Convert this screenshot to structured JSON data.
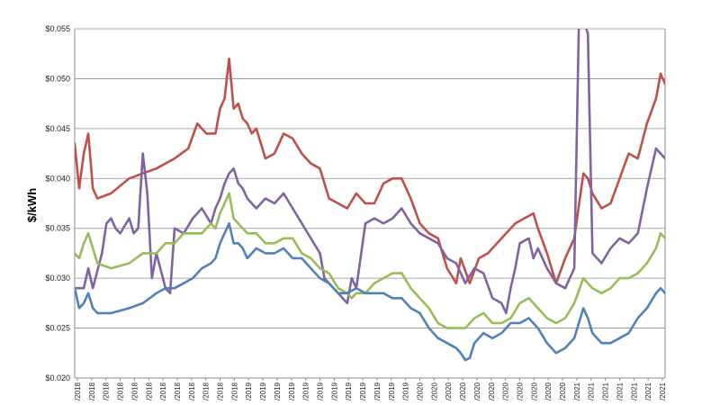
{
  "chart_data": {
    "type": "line",
    "title": "",
    "ylabel": "$/kWh",
    "xlabel": "",
    "ylim": [
      0.02,
      0.055
    ],
    "ytick_values": [
      0.02,
      0.025,
      0.03,
      0.035,
      0.04,
      0.045,
      0.05,
      0.055
    ],
    "ytick_labels": [
      "$0.020",
      "$0.025",
      "$0.030",
      "$0.035",
      "$0.040",
      "$0.045",
      "$0.050",
      "$0.055"
    ],
    "x_count": 100,
    "xtick_labels": [
      "/2018",
      "/2018",
      "/2018",
      "/2018",
      "/2018",
      "/2018",
      "/2018",
      "/2018",
      "/2018",
      "/2018",
      "/2018",
      "/2018",
      "/2019",
      "/2019",
      "/2019",
      "/2019",
      "/2019",
      "/2019",
      "/2019",
      "/2019",
      "/2019",
      "/2019",
      "/2019",
      "/2019",
      "/2020",
      "/2020",
      "/2020",
      "/2020",
      "/2020",
      "/2020",
      "/2020",
      "/2020",
      "/2020",
      "/2020",
      "/2020",
      "/2021",
      "/2021",
      "/2021",
      "/2021",
      "/2021",
      "/2021",
      "/2021"
    ],
    "grid": true,
    "series": [
      {
        "color": "#c0504d",
        "keyframes": [
          [
            0,
            0.0435
          ],
          [
            1,
            0.039
          ],
          [
            2,
            0.0425
          ],
          [
            3,
            0.0445
          ],
          [
            4,
            0.039
          ],
          [
            5,
            0.038
          ],
          [
            8,
            0.0385
          ],
          [
            12,
            0.04
          ],
          [
            15,
            0.0405
          ],
          [
            18,
            0.041
          ],
          [
            22,
            0.042
          ],
          [
            25,
            0.043
          ],
          [
            27,
            0.0455
          ],
          [
            29,
            0.0445
          ],
          [
            31,
            0.0445
          ],
          [
            32,
            0.047
          ],
          [
            33,
            0.048
          ],
          [
            34,
            0.052
          ],
          [
            35,
            0.047
          ],
          [
            36,
            0.0475
          ],
          [
            37,
            0.046
          ],
          [
            38,
            0.0455
          ],
          [
            39,
            0.0445
          ],
          [
            40,
            0.045
          ],
          [
            41,
            0.0435
          ],
          [
            42,
            0.042
          ],
          [
            44,
            0.0425
          ],
          [
            46,
            0.0445
          ],
          [
            48,
            0.044
          ],
          [
            50,
            0.0425
          ],
          [
            52,
            0.0415
          ],
          [
            54,
            0.041
          ],
          [
            56,
            0.038
          ],
          [
            58,
            0.0375
          ],
          [
            60,
            0.037
          ],
          [
            62,
            0.0385
          ],
          [
            64,
            0.0375
          ],
          [
            66,
            0.0375
          ],
          [
            68,
            0.0395
          ],
          [
            70,
            0.04
          ],
          [
            72,
            0.04
          ],
          [
            74,
            0.038
          ],
          [
            76,
            0.0355
          ],
          [
            78,
            0.0345
          ],
          [
            80,
            0.034
          ],
          [
            82,
            0.031
          ],
          [
            84,
            0.0295
          ],
          [
            85,
            0.032
          ],
          [
            87,
            0.0295
          ],
          [
            89,
            0.032
          ],
          [
            91,
            0.0325
          ],
          [
            93,
            0.0335
          ],
          [
            95,
            0.0345
          ],
          [
            97,
            0.0355
          ],
          [
            99,
            0.036
          ],
          [
            101,
            0.0365
          ],
          [
            102,
            0.035
          ],
          [
            104,
            0.0325
          ],
          [
            106,
            0.0295
          ],
          [
            108,
            0.032
          ],
          [
            110,
            0.034
          ],
          [
            112,
            0.0405
          ],
          [
            113,
            0.04
          ],
          [
            114,
            0.0385
          ],
          [
            116,
            0.037
          ],
          [
            118,
            0.0375
          ],
          [
            120,
            0.04
          ],
          [
            122,
            0.0425
          ],
          [
            124,
            0.042
          ],
          [
            126,
            0.0455
          ],
          [
            128,
            0.048
          ],
          [
            129,
            0.0505
          ],
          [
            130,
            0.0495
          ]
        ]
      },
      {
        "color": "#8064a2",
        "keyframes": [
          [
            0,
            0.029
          ],
          [
            2,
            0.029
          ],
          [
            3,
            0.031
          ],
          [
            4,
            0.029
          ],
          [
            6,
            0.0325
          ],
          [
            7,
            0.0355
          ],
          [
            8,
            0.036
          ],
          [
            9,
            0.035
          ],
          [
            10,
            0.0345
          ],
          [
            12,
            0.036
          ],
          [
            13,
            0.0345
          ],
          [
            14,
            0.035
          ],
          [
            15,
            0.0425
          ],
          [
            16,
            0.0385
          ],
          [
            17,
            0.03
          ],
          [
            18,
            0.0325
          ],
          [
            20,
            0.029
          ],
          [
            21,
            0.0285
          ],
          [
            22,
            0.035
          ],
          [
            24,
            0.0345
          ],
          [
            26,
            0.036
          ],
          [
            28,
            0.037
          ],
          [
            30,
            0.0355
          ],
          [
            31,
            0.037
          ],
          [
            32,
            0.038
          ],
          [
            33,
            0.0395
          ],
          [
            34,
            0.0405
          ],
          [
            35,
            0.041
          ],
          [
            36,
            0.0395
          ],
          [
            37,
            0.039
          ],
          [
            38,
            0.038
          ],
          [
            40,
            0.037
          ],
          [
            42,
            0.038
          ],
          [
            44,
            0.0375
          ],
          [
            46,
            0.0385
          ],
          [
            48,
            0.037
          ],
          [
            50,
            0.0355
          ],
          [
            52,
            0.034
          ],
          [
            54,
            0.0325
          ],
          [
            55,
            0.03
          ],
          [
            56,
            0.0295
          ],
          [
            58,
            0.0285
          ],
          [
            60,
            0.0275
          ],
          [
            61,
            0.03
          ],
          [
            62,
            0.029
          ],
          [
            64,
            0.0355
          ],
          [
            66,
            0.036
          ],
          [
            68,
            0.0355
          ],
          [
            70,
            0.036
          ],
          [
            72,
            0.037
          ],
          [
            74,
            0.0355
          ],
          [
            76,
            0.0345
          ],
          [
            78,
            0.034
          ],
          [
            80,
            0.0335
          ],
          [
            82,
            0.032
          ],
          [
            84,
            0.0315
          ],
          [
            86,
            0.0295
          ],
          [
            88,
            0.031
          ],
          [
            90,
            0.0305
          ],
          [
            92,
            0.028
          ],
          [
            94,
            0.0275
          ],
          [
            95,
            0.0265
          ],
          [
            96,
            0.029
          ],
          [
            97,
            0.031
          ],
          [
            98,
            0.0335
          ],
          [
            100,
            0.034
          ],
          [
            101,
            0.032
          ],
          [
            102,
            0.033
          ],
          [
            104,
            0.031
          ],
          [
            106,
            0.0295
          ],
          [
            108,
            0.029
          ],
          [
            110,
            0.031
          ],
          [
            111,
            0.055
          ],
          [
            112,
            0.056
          ],
          [
            113,
            0.0545
          ],
          [
            114,
            0.0325
          ],
          [
            116,
            0.0315
          ],
          [
            118,
            0.033
          ],
          [
            120,
            0.034
          ],
          [
            122,
            0.0335
          ],
          [
            124,
            0.0345
          ],
          [
            126,
            0.039
          ],
          [
            128,
            0.043
          ],
          [
            129,
            0.0425
          ],
          [
            130,
            0.042
          ]
        ]
      },
      {
        "color": "#9bbb59",
        "keyframes": [
          [
            0,
            0.0325
          ],
          [
            1,
            0.032
          ],
          [
            2,
            0.0335
          ],
          [
            3,
            0.0345
          ],
          [
            4,
            0.033
          ],
          [
            5,
            0.0315
          ],
          [
            8,
            0.031
          ],
          [
            12,
            0.0315
          ],
          [
            15,
            0.0325
          ],
          [
            18,
            0.0325
          ],
          [
            20,
            0.0335
          ],
          [
            22,
            0.0335
          ],
          [
            24,
            0.0345
          ],
          [
            26,
            0.0345
          ],
          [
            28,
            0.0345
          ],
          [
            30,
            0.0355
          ],
          [
            31,
            0.035
          ],
          [
            32,
            0.0365
          ],
          [
            33,
            0.0375
          ],
          [
            34,
            0.0385
          ],
          [
            35,
            0.036
          ],
          [
            36,
            0.0355
          ],
          [
            37,
            0.035
          ],
          [
            38,
            0.0345
          ],
          [
            40,
            0.0345
          ],
          [
            42,
            0.0335
          ],
          [
            44,
            0.0335
          ],
          [
            46,
            0.034
          ],
          [
            48,
            0.034
          ],
          [
            50,
            0.0325
          ],
          [
            52,
            0.032
          ],
          [
            54,
            0.031
          ],
          [
            56,
            0.0305
          ],
          [
            58,
            0.029
          ],
          [
            60,
            0.0285
          ],
          [
            61,
            0.028
          ],
          [
            62,
            0.0285
          ],
          [
            64,
            0.0285
          ],
          [
            66,
            0.0295
          ],
          [
            68,
            0.03
          ],
          [
            70,
            0.0305
          ],
          [
            72,
            0.0305
          ],
          [
            74,
            0.029
          ],
          [
            76,
            0.028
          ],
          [
            78,
            0.027
          ],
          [
            80,
            0.0255
          ],
          [
            82,
            0.025
          ],
          [
            84,
            0.025
          ],
          [
            86,
            0.025
          ],
          [
            88,
            0.026
          ],
          [
            90,
            0.0265
          ],
          [
            92,
            0.0255
          ],
          [
            94,
            0.0255
          ],
          [
            96,
            0.026
          ],
          [
            98,
            0.0275
          ],
          [
            100,
            0.028
          ],
          [
            102,
            0.027
          ],
          [
            104,
            0.026
          ],
          [
            106,
            0.0255
          ],
          [
            108,
            0.026
          ],
          [
            110,
            0.0275
          ],
          [
            112,
            0.03
          ],
          [
            113,
            0.0295
          ],
          [
            114,
            0.029
          ],
          [
            116,
            0.0285
          ],
          [
            118,
            0.029
          ],
          [
            120,
            0.03
          ],
          [
            122,
            0.03
          ],
          [
            124,
            0.0305
          ],
          [
            126,
            0.0315
          ],
          [
            128,
            0.033
          ],
          [
            129,
            0.0345
          ],
          [
            130,
            0.034
          ]
        ]
      },
      {
        "color": "#4f81bd",
        "keyframes": [
          [
            0,
            0.029
          ],
          [
            1,
            0.027
          ],
          [
            2,
            0.0275
          ],
          [
            3,
            0.0285
          ],
          [
            4,
            0.027
          ],
          [
            5,
            0.0265
          ],
          [
            8,
            0.0265
          ],
          [
            12,
            0.027
          ],
          [
            15,
            0.0275
          ],
          [
            18,
            0.0285
          ],
          [
            20,
            0.029
          ],
          [
            22,
            0.029
          ],
          [
            24,
            0.0295
          ],
          [
            26,
            0.03
          ],
          [
            28,
            0.031
          ],
          [
            30,
            0.0315
          ],
          [
            31,
            0.032
          ],
          [
            32,
            0.0335
          ],
          [
            33,
            0.0345
          ],
          [
            34,
            0.0355
          ],
          [
            35,
            0.0335
          ],
          [
            36,
            0.0335
          ],
          [
            37,
            0.033
          ],
          [
            38,
            0.032
          ],
          [
            40,
            0.033
          ],
          [
            42,
            0.0325
          ],
          [
            44,
            0.0325
          ],
          [
            46,
            0.033
          ],
          [
            48,
            0.032
          ],
          [
            50,
            0.032
          ],
          [
            52,
            0.031
          ],
          [
            54,
            0.03
          ],
          [
            56,
            0.0295
          ],
          [
            58,
            0.0285
          ],
          [
            60,
            0.0285
          ],
          [
            62,
            0.029
          ],
          [
            64,
            0.0285
          ],
          [
            66,
            0.0285
          ],
          [
            68,
            0.0285
          ],
          [
            70,
            0.028
          ],
          [
            72,
            0.028
          ],
          [
            74,
            0.027
          ],
          [
            76,
            0.0265
          ],
          [
            78,
            0.025
          ],
          [
            80,
            0.024
          ],
          [
            82,
            0.0235
          ],
          [
            84,
            0.023
          ],
          [
            85,
            0.0225
          ],
          [
            86,
            0.0218
          ],
          [
            87,
            0.022
          ],
          [
            88,
            0.0235
          ],
          [
            90,
            0.0245
          ],
          [
            92,
            0.024
          ],
          [
            94,
            0.0245
          ],
          [
            96,
            0.0255
          ],
          [
            98,
            0.0255
          ],
          [
            100,
            0.026
          ],
          [
            102,
            0.025
          ],
          [
            104,
            0.0235
          ],
          [
            106,
            0.0225
          ],
          [
            108,
            0.023
          ],
          [
            110,
            0.024
          ],
          [
            112,
            0.027
          ],
          [
            113,
            0.026
          ],
          [
            114,
            0.0245
          ],
          [
            116,
            0.0235
          ],
          [
            118,
            0.0235
          ],
          [
            120,
            0.024
          ],
          [
            122,
            0.0245
          ],
          [
            124,
            0.026
          ],
          [
            126,
            0.027
          ],
          [
            128,
            0.0285
          ],
          [
            129,
            0.029
          ],
          [
            130,
            0.0285
          ]
        ]
      }
    ]
  }
}
